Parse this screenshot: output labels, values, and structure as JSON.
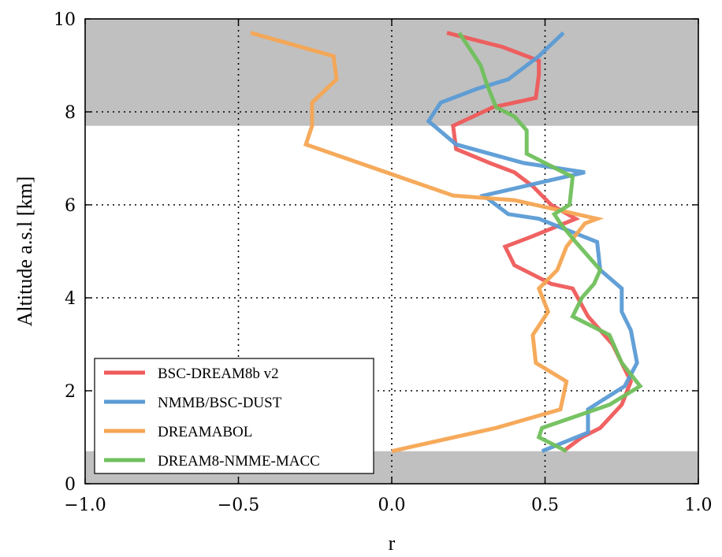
{
  "chart_data": {
    "type": "line",
    "xlabel": "r",
    "ylabel": "Altitude a.s.l [km]",
    "xlim": [
      -1.0,
      1.0
    ],
    "ylim": [
      0,
      10
    ],
    "x_ticks": [
      "−1.0",
      "−0.5",
      "0.0",
      "0.5",
      "1.0"
    ],
    "x_tick_values": [
      -1.0,
      -0.5,
      0.0,
      0.5,
      1.0
    ],
    "y_ticks": [
      "0",
      "2",
      "4",
      "6",
      "8",
      "10"
    ],
    "y_tick_values": [
      0,
      2,
      4,
      6,
      8,
      10
    ],
    "grid": true,
    "legend_position": "lower-left",
    "shaded_bands": [
      {
        "y_from": 7.7,
        "y_to": 10,
        "color": "#c0c0c0"
      },
      {
        "y_from": 0,
        "y_to": 0.7,
        "color": "#c0c0c0"
      }
    ],
    "series": [
      {
        "name": "BSC-DREAM8b v2",
        "color": "#ef5a5a",
        "points": [
          [
            0.56,
            0.7
          ],
          [
            0.58,
            0.8
          ],
          [
            0.62,
            1.0
          ],
          [
            0.68,
            1.2
          ],
          [
            0.75,
            1.7
          ],
          [
            0.78,
            2.2
          ],
          [
            0.72,
            3.0
          ],
          [
            0.64,
            3.6
          ],
          [
            0.59,
            4.2
          ],
          [
            0.52,
            4.3
          ],
          [
            0.4,
            4.7
          ],
          [
            0.37,
            5.1
          ],
          [
            0.45,
            5.3
          ],
          [
            0.6,
            5.7
          ],
          [
            0.52,
            6.0
          ],
          [
            0.46,
            6.4
          ],
          [
            0.4,
            6.7
          ],
          [
            0.32,
            6.9
          ],
          [
            0.21,
            7.2
          ],
          [
            0.2,
            7.7
          ],
          [
            0.33,
            8.1
          ],
          [
            0.47,
            8.3
          ],
          [
            0.48,
            8.8
          ],
          [
            0.48,
            9.1
          ],
          [
            0.36,
            9.4
          ],
          [
            0.18,
            9.7
          ]
        ]
      },
      {
        "name": "NMMB/BSC-DUST",
        "color": "#5a9bd5",
        "points": [
          [
            0.49,
            0.7
          ],
          [
            0.64,
            1.1
          ],
          [
            0.64,
            1.6
          ],
          [
            0.76,
            2.1
          ],
          [
            0.8,
            2.6
          ],
          [
            0.78,
            3.3
          ],
          [
            0.75,
            3.7
          ],
          [
            0.75,
            4.2
          ],
          [
            0.68,
            4.6
          ],
          [
            0.67,
            5.2
          ],
          [
            0.48,
            5.7
          ],
          [
            0.38,
            5.8
          ],
          [
            0.3,
            6.2
          ],
          [
            0.63,
            6.7
          ],
          [
            0.43,
            6.9
          ],
          [
            0.21,
            7.3
          ],
          [
            0.12,
            7.8
          ],
          [
            0.16,
            8.2
          ],
          [
            0.28,
            8.5
          ],
          [
            0.38,
            8.7
          ],
          [
            0.48,
            9.2
          ],
          [
            0.56,
            9.7
          ]
        ]
      },
      {
        "name": "DREAMABOL",
        "color": "#f5a552",
        "points": [
          [
            0.0,
            0.7
          ],
          [
            0.34,
            1.2
          ],
          [
            0.55,
            1.6
          ],
          [
            0.57,
            2.2
          ],
          [
            0.47,
            2.6
          ],
          [
            0.46,
            3.2
          ],
          [
            0.51,
            3.7
          ],
          [
            0.48,
            4.2
          ],
          [
            0.54,
            4.6
          ],
          [
            0.57,
            5.1
          ],
          [
            0.63,
            5.6
          ],
          [
            0.67,
            5.7
          ],
          [
            0.4,
            6.1
          ],
          [
            0.2,
            6.2
          ],
          [
            -0.28,
            7.3
          ],
          [
            -0.26,
            7.7
          ],
          [
            -0.26,
            8.2
          ],
          [
            -0.18,
            8.7
          ],
          [
            -0.19,
            9.2
          ],
          [
            -0.46,
            9.7
          ]
        ]
      },
      {
        "name": "DREAM8-NMME-MACC",
        "color": "#70c05c",
        "points": [
          [
            0.57,
            0.7
          ],
          [
            0.48,
            1.0
          ],
          [
            0.49,
            1.2
          ],
          [
            0.71,
            1.7
          ],
          [
            0.81,
            2.1
          ],
          [
            0.75,
            2.6
          ],
          [
            0.71,
            3.2
          ],
          [
            0.59,
            3.6
          ],
          [
            0.62,
            4.0
          ],
          [
            0.66,
            4.3
          ],
          [
            0.68,
            4.6
          ],
          [
            0.6,
            5.2
          ],
          [
            0.55,
            5.6
          ],
          [
            0.53,
            5.8
          ],
          [
            0.58,
            6.0
          ],
          [
            0.59,
            6.6
          ],
          [
            0.44,
            7.1
          ],
          [
            0.44,
            7.6
          ],
          [
            0.4,
            7.9
          ],
          [
            0.34,
            8.1
          ],
          [
            0.31,
            8.6
          ],
          [
            0.29,
            9.0
          ],
          [
            0.25,
            9.4
          ],
          [
            0.22,
            9.7
          ]
        ]
      }
    ]
  }
}
